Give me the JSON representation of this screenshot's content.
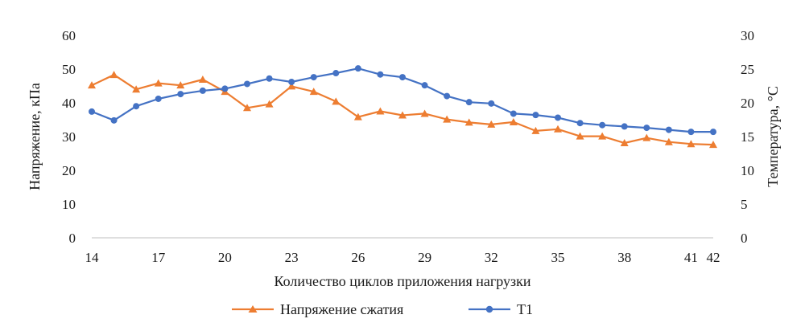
{
  "chart_data": {
    "type": "line",
    "title": "",
    "xlabel": "Количество циклов приложения нагрузки",
    "ylabel": "Напряжение, кПа",
    "y2label": "Температура, °С",
    "x": [
      14,
      15,
      16,
      17,
      18,
      19,
      20,
      21,
      22,
      23,
      24,
      25,
      26,
      27,
      28,
      29,
      30,
      31,
      32,
      33,
      34,
      35,
      36,
      37,
      38,
      39,
      40,
      41,
      42
    ],
    "x_ticks": [
      "14",
      "17",
      "20",
      "23",
      "26",
      "29",
      "32",
      "35",
      "38",
      "41",
      "42"
    ],
    "ylim": [
      0,
      60
    ],
    "y_ticks": [
      "0",
      "10",
      "20",
      "30",
      "40",
      "50",
      "60"
    ],
    "y2lim": [
      0,
      30
    ],
    "y2_ticks": [
      "0",
      "5",
      "10",
      "15",
      "20",
      "25",
      "30"
    ],
    "grid": false,
    "legend_position": "bottom",
    "series": [
      {
        "name": "Напряжение сжатия",
        "axis": "left",
        "color": "#ED7D31",
        "marker": "triangle",
        "values": [
          45.2,
          48.3,
          44.0,
          45.8,
          45.2,
          46.9,
          43.3,
          38.5,
          39.6,
          44.9,
          43.3,
          40.4,
          35.8,
          37.5,
          36.3,
          36.8,
          35.1,
          34.2,
          33.6,
          34.3,
          31.7,
          32.2,
          30.1,
          30.1,
          28.1,
          29.6,
          28.4,
          27.8,
          27.6
        ]
      },
      {
        "name": "T1",
        "axis": "right",
        "color": "#4472C4",
        "marker": "circle",
        "values": [
          18.7,
          17.4,
          19.5,
          20.6,
          21.3,
          21.8,
          22.1,
          22.8,
          23.6,
          23.1,
          23.8,
          24.4,
          25.1,
          24.2,
          23.8,
          22.6,
          21.0,
          20.1,
          19.9,
          18.4,
          18.2,
          17.8,
          17.0,
          16.7,
          16.5,
          16.3,
          16.0,
          15.7,
          15.7
        ]
      }
    ]
  }
}
